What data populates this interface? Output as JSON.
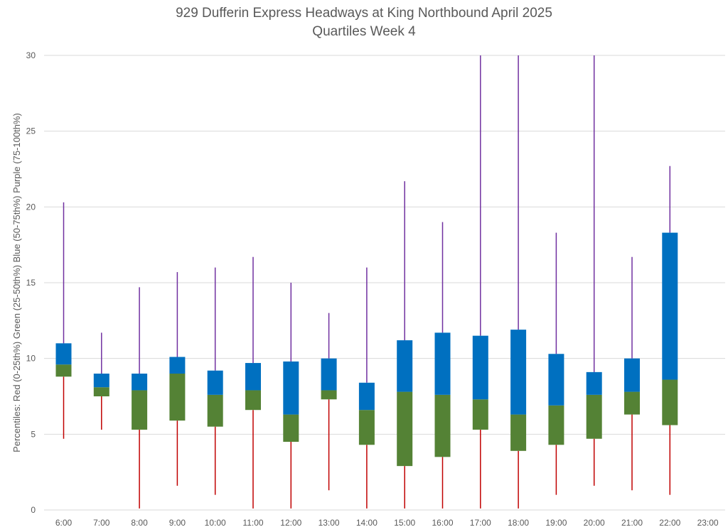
{
  "chart_data": {
    "type": "box",
    "title": "929 Dufferin Express Headways at King Northbound April 2025",
    "subtitle": "Quartiles Week 4",
    "ylabel": "Percentiles: Red (0-25th%) Green (25-50th%) Blue (50-75th%) Purple (75-100th%)",
    "xlabel": "",
    "ylim": [
      0,
      30
    ],
    "yticks": [
      0,
      5,
      10,
      15,
      20,
      25,
      30
    ],
    "grid": true,
    "colors": {
      "min_q1": "#c00000",
      "q1_median": "#548235",
      "median_q3": "#0070c0",
      "q3_max": "#7030a0",
      "gridline": "#d9d9d9",
      "text": "#595959"
    },
    "categories": [
      "6:00",
      "7:00",
      "8:00",
      "9:00",
      "10:00",
      "11:00",
      "12:00",
      "13:00",
      "14:00",
      "15:00",
      "16:00",
      "17:00",
      "18:00",
      "19:00",
      "20:00",
      "21:00",
      "22:00",
      "23:00"
    ],
    "boxes": [
      {
        "min": 4.7,
        "q1": 8.8,
        "median": 9.6,
        "q3": 11.0,
        "max": 20.3
      },
      {
        "min": 5.3,
        "q1": 7.5,
        "median": 8.1,
        "q3": 9.0,
        "max": 11.7
      },
      {
        "min": 0.1,
        "q1": 5.3,
        "median": 7.9,
        "q3": 9.0,
        "max": 14.7
      },
      {
        "min": 1.6,
        "q1": 5.9,
        "median": 9.0,
        "q3": 10.1,
        "max": 15.7
      },
      {
        "min": 1.0,
        "q1": 5.5,
        "median": 7.6,
        "q3": 9.2,
        "max": 16.0
      },
      {
        "min": 0.1,
        "q1": 6.6,
        "median": 7.9,
        "q3": 9.7,
        "max": 16.7
      },
      {
        "min": 0.1,
        "q1": 4.5,
        "median": 6.3,
        "q3": 9.8,
        "max": 15.0
      },
      {
        "min": 1.3,
        "q1": 7.3,
        "median": 7.9,
        "q3": 10.0,
        "max": 13.0
      },
      {
        "min": 0.1,
        "q1": 4.3,
        "median": 6.6,
        "q3": 8.4,
        "max": 16.0
      },
      {
        "min": 0.1,
        "q1": 2.9,
        "median": 7.8,
        "q3": 11.2,
        "max": 21.7
      },
      {
        "min": 0.1,
        "q1": 3.5,
        "median": 7.6,
        "q3": 11.7,
        "max": 19.0
      },
      {
        "min": 0.1,
        "q1": 5.3,
        "median": 7.3,
        "q3": 11.5,
        "max": 30.0
      },
      {
        "min": 0.1,
        "q1": 3.9,
        "median": 6.3,
        "q3": 11.9,
        "max": 30.0
      },
      {
        "min": 1.0,
        "q1": 4.3,
        "median": 6.9,
        "q3": 10.3,
        "max": 18.3
      },
      {
        "min": 1.6,
        "q1": 4.7,
        "median": 7.6,
        "q3": 9.1,
        "max": 30.0
      },
      {
        "min": 1.3,
        "q1": 6.3,
        "median": 7.8,
        "q3": 10.0,
        "max": 16.7
      },
      {
        "min": 1.0,
        "q1": 5.6,
        "median": 8.6,
        "q3": 18.3,
        "max": 22.7
      },
      null
    ]
  }
}
